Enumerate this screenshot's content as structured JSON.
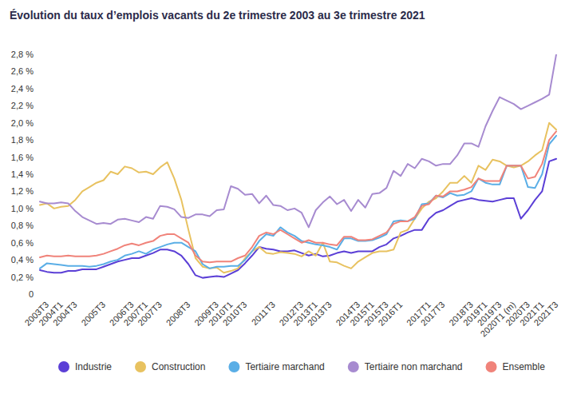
{
  "chart_data": {
    "type": "line",
    "title": "Évolution du taux d’emplois vacants du 2e trimestre 2003 au 3e trimestre 2021",
    "categories": [
      null,
      "2003T3",
      null,
      "2004T1",
      null,
      "2004T3",
      null,
      null,
      null,
      "2005T3",
      null,
      null,
      null,
      "2006T3",
      null,
      "2007T1",
      null,
      "2007T3",
      null,
      null,
      null,
      "2008T3",
      null,
      null,
      null,
      "2009T3",
      null,
      "2010T1",
      null,
      "2010T3",
      null,
      null,
      null,
      "2011T3",
      null,
      null,
      null,
      "2012T3",
      null,
      "2013T1",
      null,
      "2013T3",
      null,
      null,
      null,
      "2014T3",
      null,
      "2015T1",
      null,
      "2015T3",
      null,
      "2016T1",
      null,
      null,
      null,
      "2017T1",
      null,
      "2017T3",
      null,
      null,
      null,
      "2018T3",
      null,
      "2019T1",
      null,
      "2019T3",
      null,
      "2020T1 (m)",
      null,
      "2020T3",
      null,
      "2021T1",
      null,
      "2021T3"
    ],
    "series": [
      {
        "name": "Industrie",
        "color": "#5b3fd6",
        "values": [
          0.28,
          0.26,
          0.25,
          0.25,
          0.27,
          0.27,
          0.29,
          0.29,
          0.29,
          0.32,
          0.35,
          0.38,
          0.4,
          0.42,
          0.42,
          0.45,
          0.48,
          0.52,
          0.52,
          0.5,
          0.45,
          0.35,
          0.22,
          0.19,
          0.2,
          0.21,
          0.2,
          0.24,
          0.28,
          0.36,
          0.45,
          0.55,
          0.53,
          0.52,
          0.5,
          0.5,
          0.51,
          0.48,
          0.45,
          0.47,
          0.44,
          0.45,
          0.48,
          0.5,
          0.48,
          0.5,
          0.5,
          0.5,
          0.55,
          0.58,
          0.65,
          0.68,
          0.72,
          0.75,
          0.75,
          0.88,
          0.95,
          0.98,
          1.03,
          1.08,
          1.1,
          1.12,
          1.1,
          1.09,
          1.08,
          1.1,
          1.12,
          1.12,
          0.88,
          0.98,
          1.1,
          1.2,
          1.55,
          1.58
        ]
      },
      {
        "name": "Construction",
        "color": "#e8c260",
        "values": [
          1.04,
          1.06,
          1.0,
          1.02,
          1.03,
          1.1,
          1.2,
          1.25,
          1.3,
          1.33,
          1.43,
          1.4,
          1.49,
          1.47,
          1.42,
          1.43,
          1.4,
          1.48,
          1.54,
          1.35,
          1.1,
          0.75,
          0.42,
          0.32,
          0.3,
          0.31,
          0.25,
          0.27,
          0.3,
          0.42,
          0.5,
          0.55,
          0.48,
          0.47,
          0.49,
          0.48,
          0.47,
          0.44,
          0.5,
          0.45,
          0.6,
          0.38,
          0.37,
          0.33,
          0.3,
          0.38,
          0.43,
          0.48,
          0.5,
          0.5,
          0.52,
          0.72,
          0.75,
          0.88,
          1.0,
          1.08,
          1.12,
          1.2,
          1.3,
          1.3,
          1.38,
          1.3,
          1.5,
          1.45,
          1.57,
          1.55,
          1.5,
          1.48,
          1.5,
          1.55,
          1.62,
          1.68,
          2.0,
          1.92
        ]
      },
      {
        "name": "Tertiaire marchand",
        "color": "#5aaee6",
        "values": [
          0.3,
          0.36,
          0.35,
          0.34,
          0.33,
          0.33,
          0.33,
          0.32,
          0.33,
          0.35,
          0.38,
          0.4,
          0.45,
          0.47,
          0.5,
          0.47,
          0.52,
          0.55,
          0.58,
          0.6,
          0.6,
          0.55,
          0.5,
          0.35,
          0.3,
          0.32,
          0.32,
          0.33,
          0.33,
          0.4,
          0.5,
          0.62,
          0.7,
          0.68,
          0.78,
          0.72,
          0.68,
          0.62,
          0.6,
          0.58,
          0.57,
          0.55,
          0.52,
          0.65,
          0.65,
          0.62,
          0.62,
          0.63,
          0.66,
          0.7,
          0.85,
          0.86,
          0.85,
          0.88,
          1.05,
          1.06,
          1.15,
          1.13,
          1.18,
          1.15,
          1.16,
          1.2,
          1.35,
          1.3,
          1.28,
          1.28,
          1.5,
          1.5,
          1.5,
          1.25,
          1.24,
          1.4,
          1.75,
          1.85
        ]
      },
      {
        "name": "Tertiaire non marchand",
        "color": "#a78bd0",
        "values": [
          1.08,
          1.06,
          1.06,
          1.07,
          1.06,
          0.97,
          0.9,
          0.86,
          0.82,
          0.83,
          0.82,
          0.87,
          0.88,
          0.86,
          0.84,
          0.9,
          0.88,
          1.03,
          1.02,
          0.99,
          0.9,
          0.89,
          0.93,
          0.93,
          0.91,
          0.98,
          0.99,
          1.26,
          1.23,
          1.16,
          1.17,
          1.06,
          1.15,
          1.04,
          1.03,
          0.98,
          1.0,
          0.95,
          0.78,
          0.98,
          1.07,
          1.14,
          1.05,
          1.1,
          0.97,
          1.1,
          1.01,
          1.17,
          1.18,
          1.24,
          1.44,
          1.38,
          1.52,
          1.47,
          1.58,
          1.55,
          1.5,
          1.52,
          1.52,
          1.62,
          1.76,
          1.76,
          1.72,
          1.96,
          2.14,
          2.3,
          2.26,
          2.22,
          2.16,
          2.2,
          2.24,
          2.28,
          2.33,
          2.8
        ]
      },
      {
        "name": "Ensemble",
        "color": "#f0837a",
        "values": [
          0.43,
          0.45,
          0.44,
          0.44,
          0.45,
          0.44,
          0.44,
          0.44,
          0.45,
          0.47,
          0.5,
          0.53,
          0.57,
          0.59,
          0.57,
          0.6,
          0.62,
          0.68,
          0.7,
          0.7,
          0.65,
          0.6,
          0.45,
          0.38,
          0.37,
          0.38,
          0.38,
          0.38,
          0.42,
          0.45,
          0.55,
          0.68,
          0.72,
          0.7,
          0.75,
          0.7,
          0.65,
          0.6,
          0.63,
          0.6,
          0.6,
          0.58,
          0.57,
          0.67,
          0.67,
          0.63,
          0.63,
          0.64,
          0.68,
          0.72,
          0.82,
          0.85,
          0.85,
          0.9,
          1.03,
          1.05,
          1.15,
          1.14,
          1.2,
          1.2,
          1.22,
          1.25,
          1.35,
          1.32,
          1.32,
          1.32,
          1.5,
          1.5,
          1.5,
          1.35,
          1.37,
          1.52,
          1.8,
          1.9
        ]
      }
    ],
    "ylim": [
      0,
      2.8
    ],
    "yticks": [
      0,
      {
        "value": 0.2,
        "label": "0,2 %"
      },
      {
        "value": 0.4,
        "label": "0,4 %"
      },
      {
        "value": 0.6,
        "label": "0,6 %"
      },
      {
        "value": 0.8,
        "label": "0,8 %"
      },
      {
        "value": 1.0,
        "label": "1,0 %"
      },
      {
        "value": 1.2,
        "label": "1,2 %"
      },
      {
        "value": 1.4,
        "label": "1,4 %"
      },
      {
        "value": 1.6,
        "label": "1,6 %"
      },
      {
        "value": 1.8,
        "label": "1,8 %"
      },
      {
        "value": 2.0,
        "label": "2,0 %"
      },
      {
        "value": 2.2,
        "label": "2,2 %"
      },
      {
        "value": 2.4,
        "label": "2,4 %"
      },
      {
        "value": 2.6,
        "label": "2,6 %"
      },
      {
        "value": 2.8,
        "label": "2,8 %"
      }
    ],
    "grid": false,
    "legend": "bottom"
  }
}
